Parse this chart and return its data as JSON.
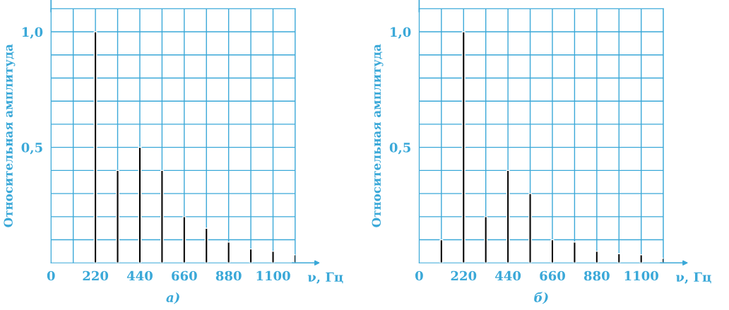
{
  "chart_data": [
    {
      "type": "bar",
      "xlabel": "ν, Гц",
      "ylabel": "Относительная амплитуда",
      "annotations": [
        "а)"
      ],
      "x": [
        220,
        330,
        440,
        550,
        660,
        770,
        880,
        990,
        1100,
        1210
      ],
      "values": [
        1.0,
        0.4,
        0.5,
        0.4,
        0.2,
        0.15,
        0.09,
        0.06,
        0.05,
        0.035
      ],
      "color": "#000000",
      "xlim": [
        0,
        1210
      ],
      "ylim": [
        0,
        1.1
      ],
      "xticks": [
        0,
        {
          "value": 110,
          "label": null
        },
        220,
        {
          "value": 330,
          "label": null
        },
        440,
        {
          "value": 550,
          "label": null
        },
        660,
        {
          "value": 770,
          "label": null
        },
        880,
        {
          "value": 990,
          "label": null
        },
        1100,
        {
          "value": 1210,
          "label": null
        }
      ],
      "yticks": [
        {
          "value": 0.1,
          "label": null
        },
        {
          "value": 0.2,
          "label": null
        },
        {
          "value": 0.3,
          "label": null
        },
        {
          "value": 0.4,
          "label": null
        },
        {
          "value": 0.5,
          "label": "0,5"
        },
        {
          "value": 0.6,
          "label": null
        },
        {
          "value": 0.7,
          "label": null
        },
        {
          "value": 0.8,
          "label": null
        },
        {
          "value": 0.9,
          "label": null
        },
        {
          "value": 1.0,
          "label": "1,0"
        },
        {
          "value": 1.1,
          "label": null
        }
      ],
      "grid": true
    },
    {
      "type": "bar",
      "xlabel": "ν, Гц",
      "ylabel": "Относительная амплитуда",
      "annotations": [
        "б)"
      ],
      "x": [
        110,
        220,
        330,
        440,
        550,
        660,
        770,
        880,
        990,
        1100,
        1210
      ],
      "values": [
        0.1,
        1.0,
        0.2,
        0.4,
        0.3,
        0.1,
        0.09,
        0.05,
        0.04,
        0.035,
        0.02
      ],
      "color": "#000000",
      "xlim": [
        0,
        1210
      ],
      "ylim": [
        0,
        1.1
      ],
      "xticks": [
        0,
        {
          "value": 110,
          "label": null
        },
        220,
        {
          "value": 330,
          "label": null
        },
        440,
        {
          "value": 550,
          "label": null
        },
        660,
        {
          "value": 770,
          "label": null
        },
        880,
        {
          "value": 990,
          "label": null
        },
        1100,
        {
          "value": 1210,
          "label": null
        }
      ],
      "yticks": [
        {
          "value": 0.1,
          "label": null
        },
        {
          "value": 0.2,
          "label": null
        },
        {
          "value": 0.3,
          "label": null
        },
        {
          "value": 0.4,
          "label": null
        },
        {
          "value": 0.5,
          "label": "0,5"
        },
        {
          "value": 0.6,
          "label": null
        },
        {
          "value": 0.7,
          "label": null
        },
        {
          "value": 0.8,
          "label": null
        },
        {
          "value": 0.9,
          "label": null
        },
        {
          "value": 1.0,
          "label": "1,0"
        },
        {
          "value": 1.1,
          "label": null
        }
      ],
      "grid": true
    }
  ]
}
